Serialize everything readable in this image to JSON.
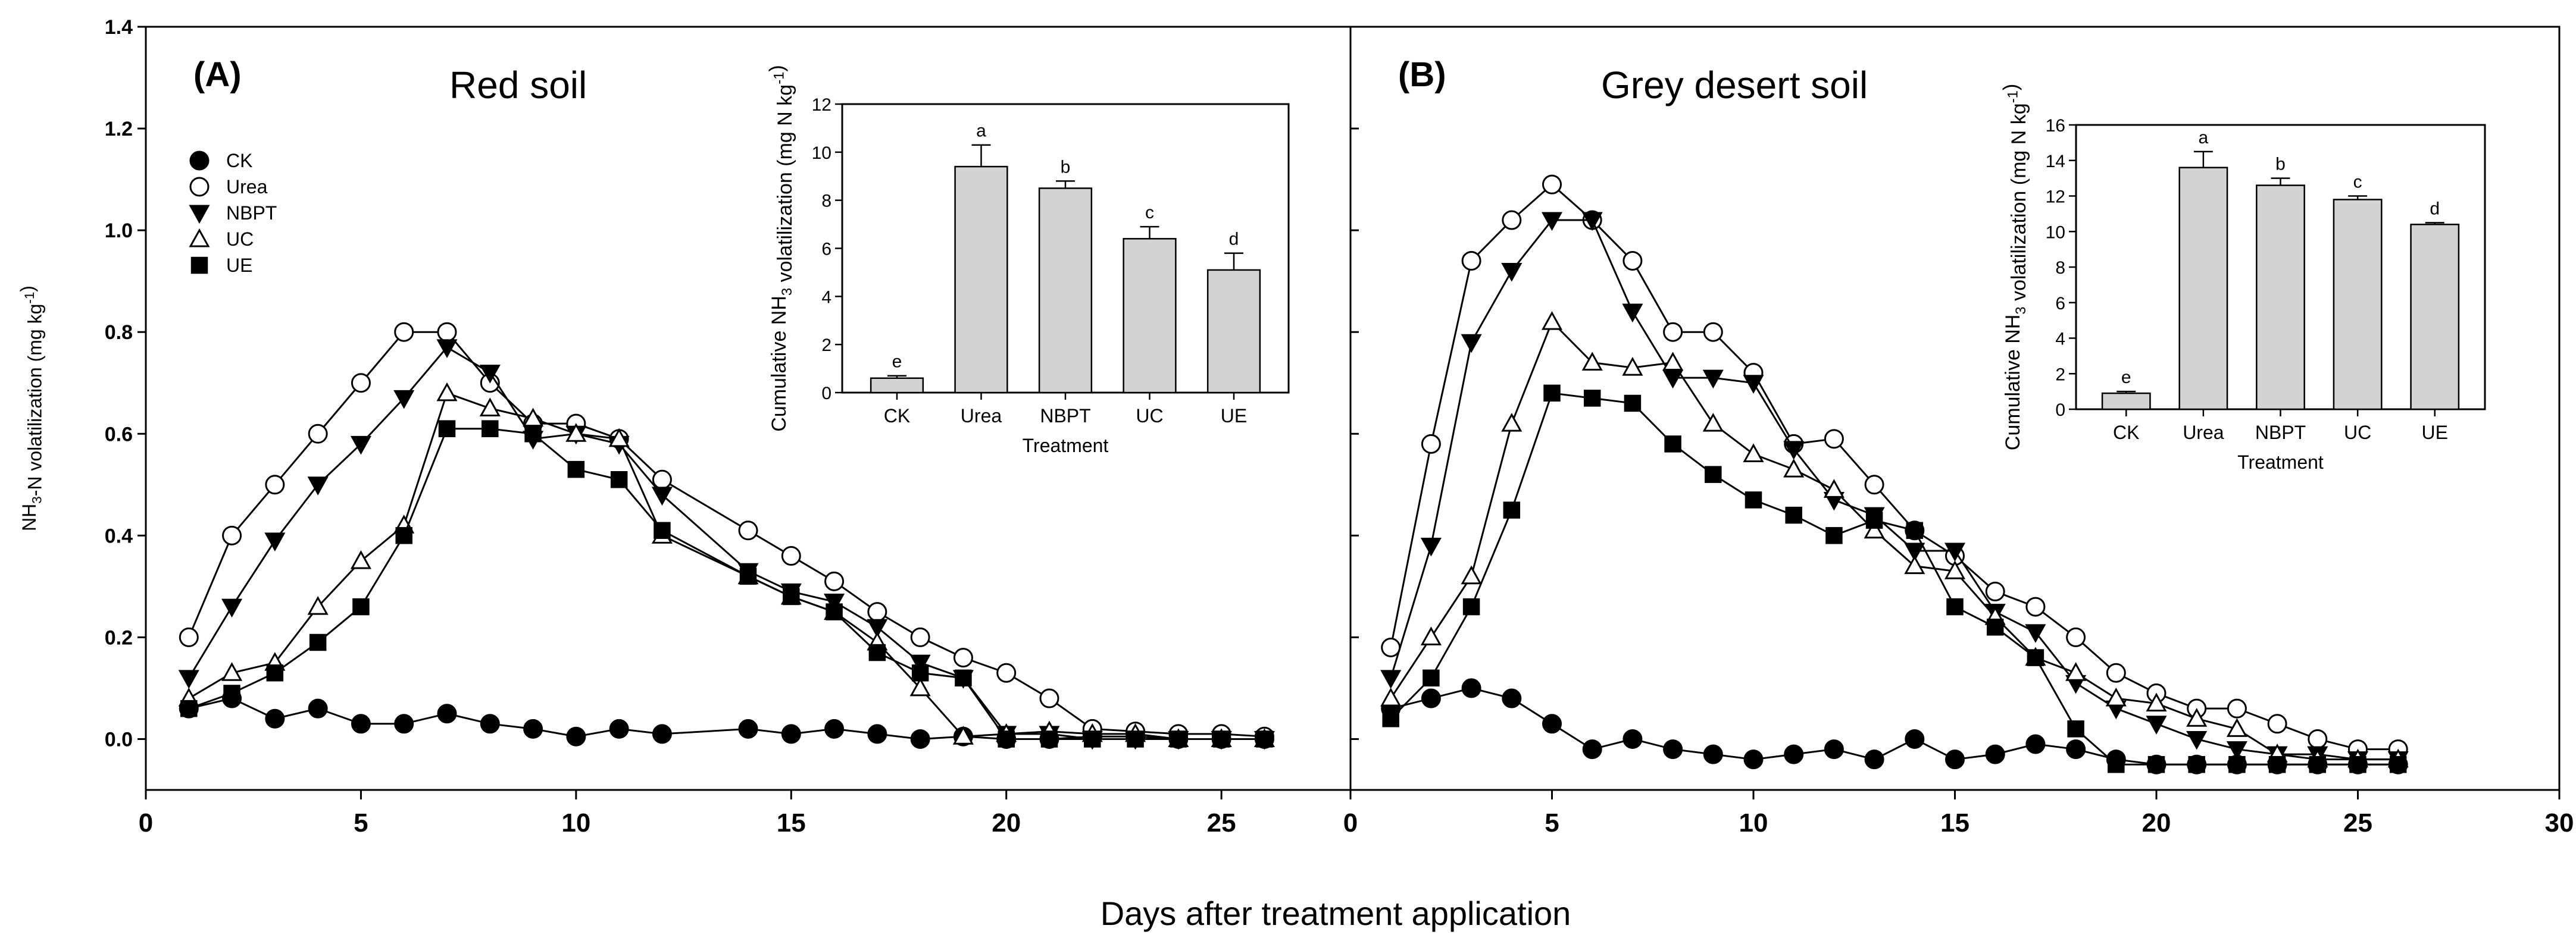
{
  "figure": {
    "xlabel": "Days after treatment application"
  },
  "chart_data": [
    {
      "type": "line",
      "panel_label": "(A)",
      "title": "Red soil",
      "xlabel": "",
      "ylabel": "NH3-N volatilization (mg kg-1)",
      "xlim": [
        0,
        28
      ],
      "ylim": [
        -0.1,
        1.4
      ],
      "x_ticks": [
        0,
        5,
        10,
        15,
        20,
        25
      ],
      "y_ticks": [
        0.0,
        0.2,
        0.4,
        0.6,
        0.8,
        1.0,
        1.2,
        1.4
      ],
      "legend": {
        "position": "top-left",
        "entries": [
          "CK",
          "Urea",
          "NBPT",
          "UC",
          "UE"
        ]
      },
      "x": [
        1,
        2,
        3,
        4,
        5,
        6,
        7,
        8,
        9,
        10,
        11,
        12,
        14,
        15,
        16,
        17,
        18,
        19,
        20,
        21,
        22,
        23,
        24,
        25,
        26
      ],
      "series": [
        {
          "name": "CK",
          "marker": "filled-circle",
          "values": [
            0.06,
            0.08,
            0.04,
            0.06,
            0.03,
            0.03,
            0.05,
            0.03,
            0.02,
            0.005,
            0.02,
            0.01,
            0.02,
            0.01,
            0.02,
            0.01,
            0.0,
            0.005,
            0.0,
            0.0,
            0.005,
            0.005,
            0.0,
            0.0,
            0.0
          ]
        },
        {
          "name": "Urea",
          "marker": "open-circle",
          "values": [
            0.2,
            0.4,
            0.5,
            0.6,
            0.7,
            0.8,
            0.8,
            0.7,
            0.62,
            0.62,
            0.59,
            0.51,
            0.41,
            0.36,
            0.31,
            0.25,
            0.2,
            0.16,
            0.13,
            0.08,
            0.02,
            0.015,
            0.01,
            0.01,
            0.005
          ]
        },
        {
          "name": "NBPT",
          "marker": "filled-triangle-down",
          "values": [
            0.12,
            0.26,
            0.39,
            0.5,
            0.58,
            0.67,
            0.77,
            0.72,
            0.59,
            0.6,
            0.58,
            0.48,
            0.33,
            0.29,
            0.27,
            0.22,
            0.15,
            0.12,
            0.01,
            0.01,
            0.0,
            0.0,
            0.0,
            0.0,
            0.0
          ]
        },
        {
          "name": "UC",
          "marker": "open-triangle-up",
          "values": [
            0.08,
            0.13,
            0.15,
            0.26,
            0.35,
            0.42,
            0.68,
            0.65,
            0.63,
            0.6,
            0.59,
            0.4,
            0.32,
            0.28,
            0.25,
            0.19,
            0.1,
            0.005,
            0.01,
            0.015,
            0.01,
            0.01,
            0.0,
            0.0,
            0.0
          ]
        },
        {
          "name": "UE",
          "marker": "filled-square",
          "values": [
            0.06,
            0.09,
            0.13,
            0.19,
            0.26,
            0.4,
            0.61,
            0.61,
            0.6,
            0.53,
            0.51,
            0.41,
            0.32,
            0.28,
            0.25,
            0.17,
            0.13,
            0.12,
            0.0,
            0.0,
            0.0,
            0.0,
            0.0,
            0.0,
            0.0
          ]
        }
      ],
      "inset": {
        "type": "bar",
        "xlabel": "Treatment",
        "ylabel": "Cumulative NH3 volatilization (mg N kg-1)",
        "categories": [
          "CK",
          "Urea",
          "NBPT",
          "UC",
          "UE"
        ],
        "values": [
          0.6,
          9.4,
          8.5,
          6.4,
          5.1
        ],
        "errors": [
          0.1,
          0.9,
          0.3,
          0.5,
          0.7
        ],
        "labels": [
          "e",
          "a",
          "b",
          "c",
          "d"
        ],
        "ylim": [
          0,
          12
        ],
        "y_ticks": [
          0,
          2,
          4,
          6,
          8,
          10,
          12
        ],
        "bar_color": "#d3d3d3"
      }
    },
    {
      "type": "line",
      "panel_label": "(B)",
      "title": "Grey desert soil",
      "xlabel": "",
      "ylabel": "",
      "xlim": [
        0,
        30
      ],
      "ylim": [
        -0.1,
        1.4
      ],
      "x_ticks": [
        0,
        5,
        10,
        15,
        20,
        25,
        30
      ],
      "x": [
        1,
        2,
        3,
        4,
        5,
        6,
        7,
        8,
        9,
        10,
        11,
        12,
        13,
        14,
        15,
        16,
        17,
        18,
        19,
        20,
        21,
        22,
        23,
        24,
        25,
        26
      ],
      "series": [
        {
          "name": "CK",
          "marker": "filled-circle",
          "values": [
            0.06,
            0.08,
            0.1,
            0.08,
            0.03,
            -0.02,
            0.0,
            -0.02,
            -0.03,
            -0.04,
            -0.03,
            -0.02,
            -0.04,
            0.0,
            -0.04,
            -0.03,
            -0.01,
            -0.02,
            -0.04,
            -0.05,
            -0.05,
            -0.05,
            -0.05,
            -0.05,
            -0.05,
            -0.05
          ]
        },
        {
          "name": "Urea",
          "marker": "open-circle",
          "values": [
            0.18,
            0.58,
            0.94,
            1.02,
            1.09,
            1.02,
            0.94,
            0.8,
            0.8,
            0.72,
            0.58,
            0.59,
            0.5,
            0.41,
            0.36,
            0.29,
            0.26,
            0.2,
            0.13,
            0.09,
            0.06,
            0.06,
            0.03,
            0.0,
            -0.02,
            -0.02
          ]
        },
        {
          "name": "NBPT",
          "marker": "filled-triangle-down",
          "values": [
            0.12,
            0.38,
            0.78,
            0.92,
            1.02,
            1.02,
            0.84,
            0.71,
            0.71,
            0.7,
            0.57,
            0.47,
            0.44,
            0.37,
            0.37,
            0.25,
            0.21,
            0.11,
            0.06,
            0.03,
            0.0,
            -0.02,
            -0.03,
            -0.03,
            -0.04,
            -0.04
          ]
        },
        {
          "name": "UC",
          "marker": "open-triangle-up",
          "values": [
            0.08,
            0.2,
            0.32,
            0.62,
            0.82,
            0.74,
            0.73,
            0.74,
            0.62,
            0.56,
            0.53,
            0.49,
            0.41,
            0.34,
            0.33,
            0.24,
            0.16,
            0.13,
            0.08,
            0.07,
            0.04,
            0.02,
            -0.03,
            -0.04,
            -0.04,
            -0.04
          ]
        },
        {
          "name": "UE",
          "marker": "filled-square",
          "values": [
            0.04,
            0.12,
            0.26,
            0.45,
            0.68,
            0.67,
            0.66,
            0.58,
            0.52,
            0.47,
            0.44,
            0.4,
            0.43,
            0.41,
            0.26,
            0.22,
            0.16,
            0.02,
            -0.05,
            -0.05,
            -0.05,
            -0.05,
            -0.05,
            -0.05,
            -0.05,
            -0.05
          ]
        }
      ],
      "inset": {
        "type": "bar",
        "xlabel": "Treatment",
        "ylabel": "Cumulative NH3 volatilization (mg N kg-1)",
        "categories": [
          "CK",
          "Urea",
          "NBPT",
          "UC",
          "UE"
        ],
        "values": [
          0.9,
          13.6,
          12.6,
          11.8,
          10.4
        ],
        "errors": [
          0.1,
          0.9,
          0.4,
          0.2,
          0.1
        ],
        "labels": [
          "e",
          "a",
          "b",
          "c",
          "d"
        ],
        "ylim": [
          0,
          16
        ],
        "y_ticks": [
          0,
          2,
          4,
          6,
          8,
          10,
          12,
          14,
          16
        ],
        "bar_color": "#d3d3d3"
      }
    }
  ]
}
